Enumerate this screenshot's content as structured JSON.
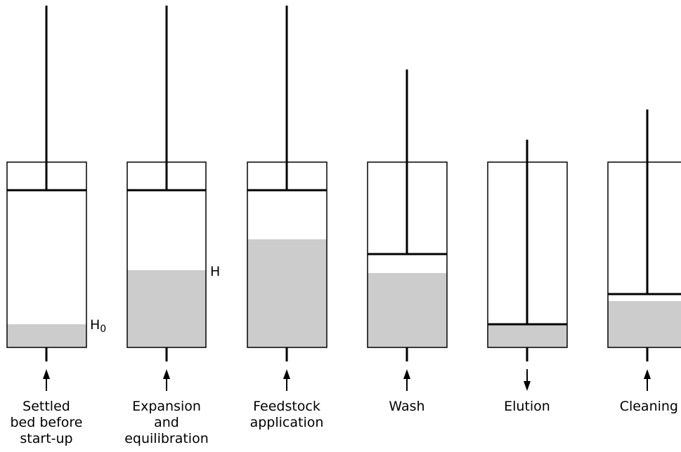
{
  "stages": [
    {
      "label_lines": [
        "Settled",
        "bed before",
        "start-up"
      ],
      "bed_level": "H0",
      "flow": "up"
    },
    {
      "label_lines": [
        "Expansion",
        "and",
        "equilibration"
      ],
      "bed_level": "H",
      "flow": "up"
    },
    {
      "label_lines": [
        "Feedstock",
        "application"
      ],
      "flow": "up"
    },
    {
      "label_lines": [
        "Wash"
      ],
      "flow": "up"
    },
    {
      "label_lines": [
        "Elution"
      ],
      "flow": "down"
    },
    {
      "label_lines": [
        "Cleaning"
      ],
      "flow": "up"
    }
  ],
  "markers": {
    "h0": {
      "base": "H",
      "sub": "0"
    },
    "h": {
      "base": "H"
    }
  },
  "colors": {
    "bed": "#cccccc",
    "outline": "#000000",
    "background": "#ffffff"
  }
}
